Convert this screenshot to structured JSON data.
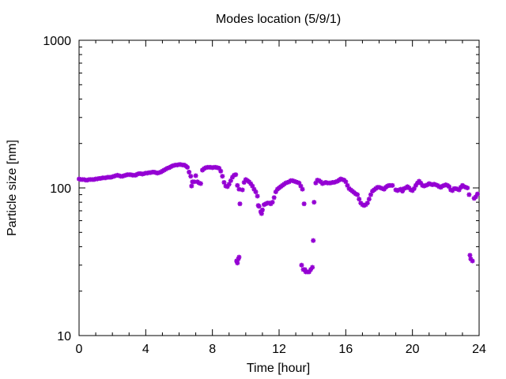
{
  "chart_data": {
    "type": "scatter",
    "title": "Modes location (5/9/1)",
    "xlabel": "Time [hour]",
    "ylabel": "Particle size [nm]",
    "xlim": [
      0,
      24
    ],
    "ylim": [
      10,
      1000
    ],
    "yscale": "log",
    "x_ticks": [
      0,
      4,
      8,
      12,
      16,
      20,
      24
    ],
    "y_ticks": [
      10,
      100,
      1000
    ],
    "x_tick_labels": [
      "0",
      "4",
      "8",
      "12",
      "16",
      "20",
      "24"
    ],
    "y_tick_labels": [
      "10",
      "100",
      "1000"
    ],
    "grid": false,
    "legend": "none",
    "marker_color": "#9400d3",
    "series": [
      {
        "values": [
          [
            0.0,
            115
          ],
          [
            0.1,
            114
          ],
          [
            0.2,
            114
          ],
          [
            0.3,
            114
          ],
          [
            0.4,
            113
          ],
          [
            0.5,
            113
          ],
          [
            0.6,
            114
          ],
          [
            0.7,
            114
          ],
          [
            0.8,
            114
          ],
          [
            0.9,
            114
          ],
          [
            1.0,
            115
          ],
          [
            1.1,
            115
          ],
          [
            1.2,
            116
          ],
          [
            1.3,
            116
          ],
          [
            1.4,
            117
          ],
          [
            1.5,
            117
          ],
          [
            1.6,
            117
          ],
          [
            1.7,
            118
          ],
          [
            1.8,
            118
          ],
          [
            1.9,
            118
          ],
          [
            2.0,
            119
          ],
          [
            2.1,
            120
          ],
          [
            2.2,
            121
          ],
          [
            2.3,
            122
          ],
          [
            2.4,
            121
          ],
          [
            2.5,
            120
          ],
          [
            2.6,
            120
          ],
          [
            2.7,
            121
          ],
          [
            2.8,
            122
          ],
          [
            2.9,
            123
          ],
          [
            3.0,
            123
          ],
          [
            3.1,
            123
          ],
          [
            3.2,
            122
          ],
          [
            3.3,
            122
          ],
          [
            3.4,
            122
          ],
          [
            3.5,
            124
          ],
          [
            3.6,
            125
          ],
          [
            3.7,
            125
          ],
          [
            3.8,
            124
          ],
          [
            3.9,
            125
          ],
          [
            4.0,
            126
          ],
          [
            4.1,
            126
          ],
          [
            4.2,
            127
          ],
          [
            4.3,
            127
          ],
          [
            4.4,
            128
          ],
          [
            4.5,
            128
          ],
          [
            4.6,
            127
          ],
          [
            4.7,
            126
          ],
          [
            4.8,
            127
          ],
          [
            4.9,
            128
          ],
          [
            5.0,
            130
          ],
          [
            5.1,
            132
          ],
          [
            5.2,
            134
          ],
          [
            5.3,
            136
          ],
          [
            5.4,
            137
          ],
          [
            5.5,
            139
          ],
          [
            5.6,
            141
          ],
          [
            5.7,
            142
          ],
          [
            5.8,
            143
          ],
          [
            5.9,
            143
          ],
          [
            6.0,
            144
          ],
          [
            6.1,
            144
          ],
          [
            6.2,
            143
          ],
          [
            6.3,
            143
          ],
          [
            6.4,
            141
          ],
          [
            6.5,
            138
          ],
          [
            6.6,
            128
          ],
          [
            6.7,
            120
          ],
          [
            6.75,
            103
          ],
          [
            6.8,
            110
          ],
          [
            6.9,
            110
          ],
          [
            7.0,
            121
          ],
          [
            7.1,
            110
          ],
          [
            7.2,
            108
          ],
          [
            7.3,
            107
          ],
          [
            7.4,
            132
          ],
          [
            7.5,
            135
          ],
          [
            7.6,
            137
          ],
          [
            7.7,
            138
          ],
          [
            7.8,
            138
          ],
          [
            7.9,
            138
          ],
          [
            8.0,
            137
          ],
          [
            8.1,
            138
          ],
          [
            8.2,
            138
          ],
          [
            8.3,
            137
          ],
          [
            8.4,
            136
          ],
          [
            8.5,
            130
          ],
          [
            8.6,
            120
          ],
          [
            8.7,
            109
          ],
          [
            8.8,
            103
          ],
          [
            8.9,
            102
          ],
          [
            9.0,
            106
          ],
          [
            9.1,
            112
          ],
          [
            9.2,
            118
          ],
          [
            9.3,
            122
          ],
          [
            9.4,
            123
          ],
          [
            9.45,
            32
          ],
          [
            9.5,
            31
          ],
          [
            9.55,
            33
          ],
          [
            9.6,
            34
          ],
          [
            9.5,
            104
          ],
          [
            9.6,
            98
          ],
          [
            9.65,
            78
          ],
          [
            9.8,
            97
          ],
          [
            9.9,
            109
          ],
          [
            10.0,
            114
          ],
          [
            10.1,
            112
          ],
          [
            10.2,
            110
          ],
          [
            10.3,
            107
          ],
          [
            10.4,
            103
          ],
          [
            10.5,
            98
          ],
          [
            10.6,
            94
          ],
          [
            10.7,
            88
          ],
          [
            10.75,
            76
          ],
          [
            10.8,
            75
          ],
          [
            10.9,
            69
          ],
          [
            10.95,
            67
          ],
          [
            11.0,
            71
          ],
          [
            11.1,
            77
          ],
          [
            11.2,
            78
          ],
          [
            11.3,
            79
          ],
          [
            11.4,
            79
          ],
          [
            11.5,
            78
          ],
          [
            11.6,
            80
          ],
          [
            11.7,
            86
          ],
          [
            11.8,
            94
          ],
          [
            11.9,
            98
          ],
          [
            12.0,
            100
          ],
          [
            12.1,
            102
          ],
          [
            12.2,
            104
          ],
          [
            12.3,
            106
          ],
          [
            12.4,
            108
          ],
          [
            12.5,
            109
          ],
          [
            12.6,
            110
          ],
          [
            12.7,
            112
          ],
          [
            12.8,
            112
          ],
          [
            12.9,
            111
          ],
          [
            13.0,
            110
          ],
          [
            13.1,
            109
          ],
          [
            13.2,
            108
          ],
          [
            13.3,
            103
          ],
          [
            13.35,
            30
          ],
          [
            13.4,
            98
          ],
          [
            13.45,
            28
          ],
          [
            13.5,
            78
          ],
          [
            13.55,
            28
          ],
          [
            13.6,
            27
          ],
          [
            13.7,
            27
          ],
          [
            13.8,
            27
          ],
          [
            13.9,
            28
          ],
          [
            14.0,
            29
          ],
          [
            14.05,
            44
          ],
          [
            14.1,
            80
          ],
          [
            14.2,
            108
          ],
          [
            14.3,
            113
          ],
          [
            14.4,
            112
          ],
          [
            14.5,
            110
          ],
          [
            14.6,
            107
          ],
          [
            14.7,
            108
          ],
          [
            14.8,
            109
          ],
          [
            14.9,
            108
          ],
          [
            15.0,
            108
          ],
          [
            15.1,
            108
          ],
          [
            15.2,
            109
          ],
          [
            15.3,
            109
          ],
          [
            15.4,
            110
          ],
          [
            15.5,
            111
          ],
          [
            15.6,
            113
          ],
          [
            15.7,
            115
          ],
          [
            15.8,
            114
          ],
          [
            15.9,
            113
          ],
          [
            16.0,
            110
          ],
          [
            16.1,
            104
          ],
          [
            16.2,
            99
          ],
          [
            16.3,
            97
          ],
          [
            16.4,
            95
          ],
          [
            16.5,
            93
          ],
          [
            16.6,
            91
          ],
          [
            16.7,
            90
          ],
          [
            16.8,
            84
          ],
          [
            16.9,
            79
          ],
          [
            17.0,
            77
          ],
          [
            17.1,
            76
          ],
          [
            17.2,
            77
          ],
          [
            17.3,
            79
          ],
          [
            17.4,
            84
          ],
          [
            17.5,
            90
          ],
          [
            17.6,
            95
          ],
          [
            17.7,
            97
          ],
          [
            17.8,
            99
          ],
          [
            17.9,
            101
          ],
          [
            18.0,
            101
          ],
          [
            18.1,
            100
          ],
          [
            18.2,
            99
          ],
          [
            18.3,
            98
          ],
          [
            18.4,
            101
          ],
          [
            18.5,
            103
          ],
          [
            18.6,
            104
          ],
          [
            18.7,
            104
          ],
          [
            18.8,
            104
          ],
          [
            19.0,
            97
          ],
          [
            19.1,
            96
          ],
          [
            19.2,
            97
          ],
          [
            19.3,
            98
          ],
          [
            19.4,
            95
          ],
          [
            19.5,
            99
          ],
          [
            19.6,
            100
          ],
          [
            19.7,
            102
          ],
          [
            19.8,
            100
          ],
          [
            19.9,
            97
          ],
          [
            20.0,
            96
          ],
          [
            20.1,
            99
          ],
          [
            20.2,
            104
          ],
          [
            20.3,
            108
          ],
          [
            20.4,
            111
          ],
          [
            20.5,
            108
          ],
          [
            20.6,
            104
          ],
          [
            20.7,
            103
          ],
          [
            20.8,
            104
          ],
          [
            20.9,
            105
          ],
          [
            21.0,
            107
          ],
          [
            21.1,
            106
          ],
          [
            21.2,
            105
          ],
          [
            21.3,
            106
          ],
          [
            21.4,
            105
          ],
          [
            21.5,
            104
          ],
          [
            21.6,
            102
          ],
          [
            21.7,
            101
          ],
          [
            21.8,
            103
          ],
          [
            21.9,
            104
          ],
          [
            22.0,
            105
          ],
          [
            22.1,
            104
          ],
          [
            22.2,
            102
          ],
          [
            22.3,
            97
          ],
          [
            22.4,
            96
          ],
          [
            22.5,
            99
          ],
          [
            22.6,
            99
          ],
          [
            22.7,
            98
          ],
          [
            22.8,
            97
          ],
          [
            22.9,
            101
          ],
          [
            23.0,
            104
          ],
          [
            23.1,
            102
          ],
          [
            23.2,
            101
          ],
          [
            23.3,
            100
          ],
          [
            23.4,
            90
          ],
          [
            23.45,
            35
          ],
          [
            23.5,
            33
          ],
          [
            23.6,
            32
          ],
          [
            23.7,
            85
          ],
          [
            23.8,
            87
          ],
          [
            23.9,
            91
          ]
        ]
      }
    ]
  }
}
